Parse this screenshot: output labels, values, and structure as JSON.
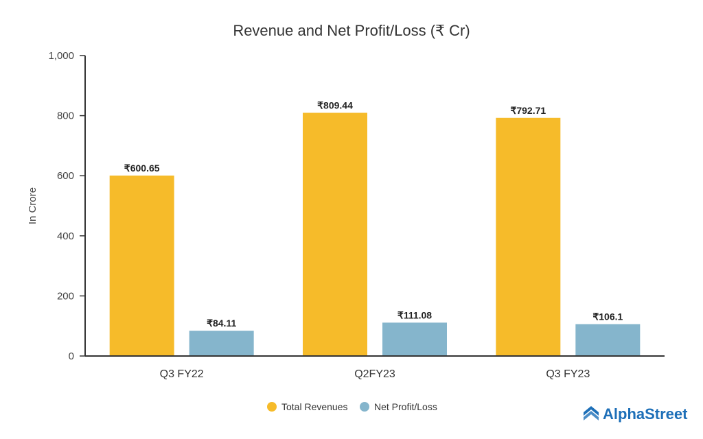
{
  "chart_data": {
    "type": "bar",
    "title": "Revenue and Net Profit/Loss (₹ Cr)",
    "xlabel": "",
    "ylabel": "In Crore",
    "ylim": [
      0,
      1000
    ],
    "yticks": [
      0,
      200,
      400,
      600,
      800,
      1000
    ],
    "ytick_labels": [
      "0",
      "200",
      "400",
      "600",
      "800",
      "1,000"
    ],
    "categories": [
      "Q3 FY22",
      "Q2FY23",
      "Q3 FY23"
    ],
    "series": [
      {
        "name": "Total Revenues",
        "color": "#f6bb2a",
        "values": [
          600.65,
          809.44,
          792.71
        ],
        "labels": [
          "₹600.65",
          "₹809.44",
          "₹792.71"
        ]
      },
      {
        "name": "Net Profit/Loss",
        "color": "#85b5cc",
        "values": [
          84.11,
          111.08,
          106.1
        ],
        "labels": [
          "₹84.11",
          "₹111.08",
          "₹106.1"
        ]
      }
    ],
    "grid": false,
    "legend": "bottom-center"
  },
  "brand": {
    "name": "AlphaStreet",
    "color": "#1d6fb8"
  }
}
